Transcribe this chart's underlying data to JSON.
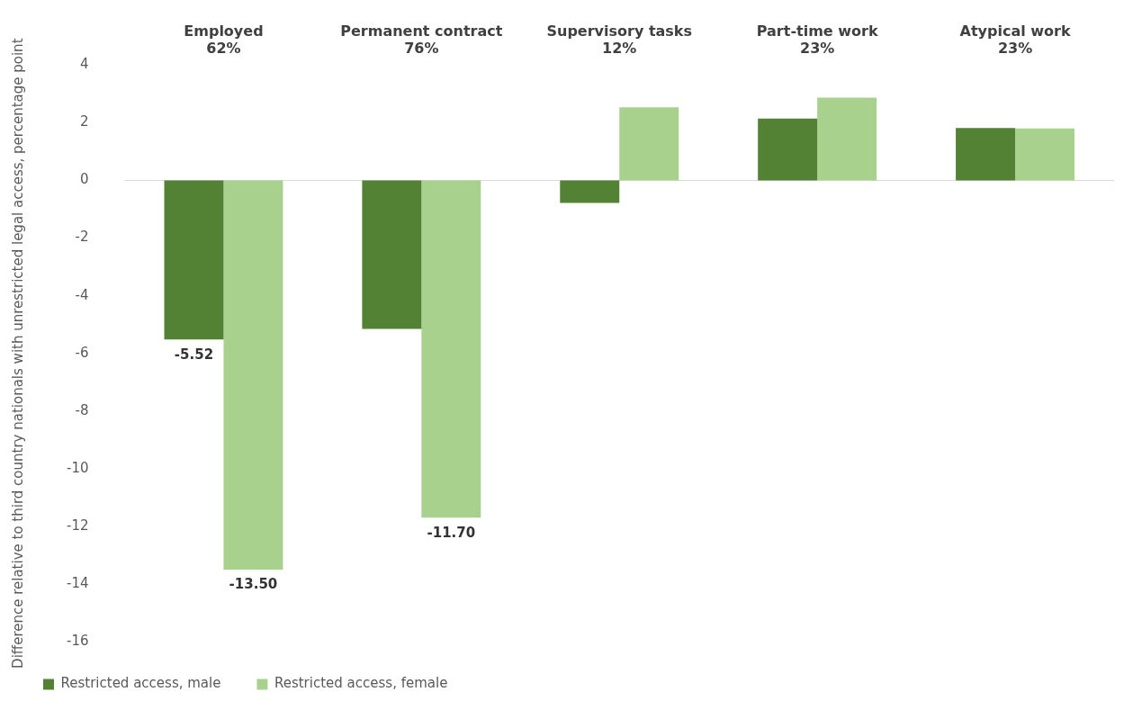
{
  "chart_data": {
    "type": "bar",
    "ylabel": "Difference relative to third country nationals with unrestricted legal access, percentage point",
    "categories": [
      "Employed\n62%",
      "Permanent contract\n76%",
      "Supervisory tasks\n12%",
      "Part-time work\n23%",
      "Atypical work\n23%"
    ],
    "series": [
      {
        "name": "Restricted access, male",
        "color": "#548235",
        "values": [
          -5.52,
          -5.15,
          -0.78,
          2.15,
          1.82
        ],
        "value_labels": [
          "-5.52",
          null,
          null,
          null,
          null
        ]
      },
      {
        "name": "Restricted access, female",
        "color": "#a9d18e",
        "values": [
          -13.5,
          -11.7,
          2.54,
          2.87,
          1.8
        ],
        "value_labels": [
          "-13.50",
          "-11.70",
          null,
          null,
          null
        ]
      }
    ],
    "ylim": [
      -16,
      4
    ],
    "yticks": [
      -16,
      -14,
      -12,
      -10,
      -8,
      -6,
      -4,
      -2,
      0,
      2,
      4
    ],
    "ref_lines": [
      {
        "axis": "y",
        "value": 0,
        "color": "#d9d9d9"
      }
    ],
    "grid": false,
    "legend": "bottom"
  }
}
